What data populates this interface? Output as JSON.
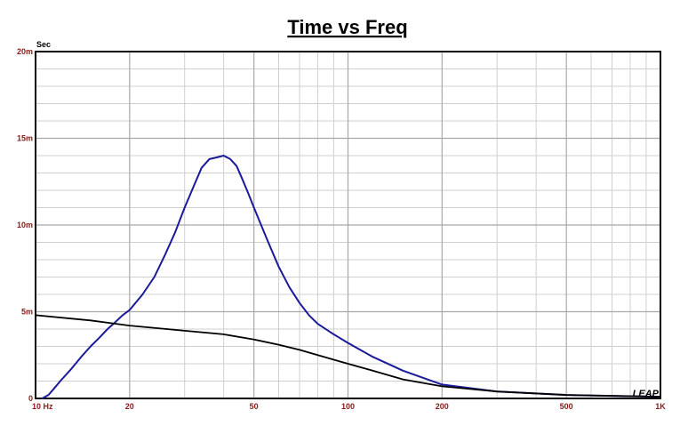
{
  "chart_data": {
    "type": "line",
    "title": "Time vs Freq",
    "y_unit": "Sec",
    "watermark": "LEAP",
    "x_scale": "log",
    "xlim": [
      10,
      1000
    ],
    "ylim": [
      0,
      0.02
    ],
    "grid": true,
    "x_tick_labels": [
      {
        "value": 10,
        "label": "10  Hz"
      },
      {
        "value": 20,
        "label": "20"
      },
      {
        "value": 50,
        "label": "50"
      },
      {
        "value": 100,
        "label": "100"
      },
      {
        "value": 200,
        "label": "200"
      },
      {
        "value": 500,
        "label": "500"
      },
      {
        "value": 1000,
        "label": "1K"
      }
    ],
    "y_tick_labels": [
      {
        "value": 0,
        "label": "0"
      },
      {
        "value": 0.005,
        "label": "5m"
      },
      {
        "value": 0.01,
        "label": "10m"
      },
      {
        "value": 0.015,
        "label": "15m"
      },
      {
        "value": 0.02,
        "label": "20m"
      }
    ],
    "series": [
      {
        "color": "#1a1a9a",
        "x": [
          10.5,
          11,
          11.5,
          12,
          13,
          14,
          15,
          16,
          17,
          18,
          19,
          20,
          22,
          24,
          26,
          28,
          30,
          32,
          34,
          36,
          38,
          40,
          42,
          44,
          46,
          48,
          50,
          55,
          60,
          65,
          70,
          75,
          80,
          90,
          100,
          120,
          150,
          200,
          300,
          500,
          700,
          1000
        ],
        "y": [
          0.0,
          0.0002,
          0.0006,
          0.001,
          0.0017,
          0.0024,
          0.003,
          0.0035,
          0.004,
          0.0044,
          0.0048,
          0.0051,
          0.006,
          0.007,
          0.0083,
          0.0096,
          0.011,
          0.0122,
          0.0133,
          0.0138,
          0.0139,
          0.014,
          0.0138,
          0.0134,
          0.0126,
          0.0118,
          0.011,
          0.0092,
          0.0076,
          0.0064,
          0.0055,
          0.0048,
          0.0043,
          0.0037,
          0.0032,
          0.0024,
          0.0016,
          0.0008,
          0.0004,
          0.0002,
          0.00015,
          0.0001
        ]
      },
      {
        "color": "#000000",
        "x": [
          10,
          15,
          20,
          30,
          40,
          50,
          60,
          70,
          80,
          100,
          120,
          150,
          200,
          300,
          500,
          700,
          1000
        ],
        "y": [
          0.0048,
          0.0045,
          0.0042,
          0.0039,
          0.0037,
          0.0034,
          0.0031,
          0.0028,
          0.0025,
          0.002,
          0.0016,
          0.0011,
          0.0007,
          0.0004,
          0.0002,
          0.00015,
          0.0001
        ]
      }
    ]
  }
}
